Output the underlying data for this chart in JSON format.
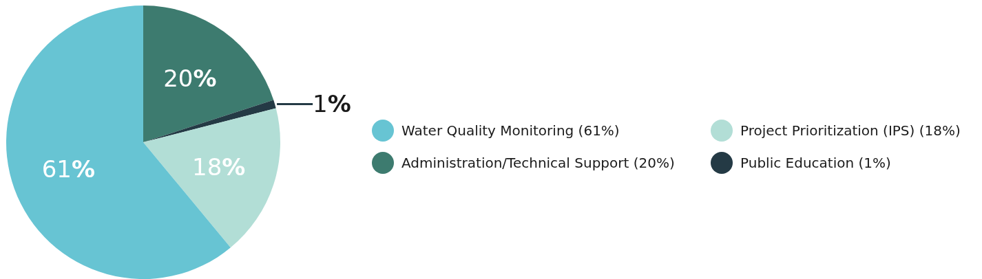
{
  "chart_data": {
    "type": "pie",
    "categories": [
      "Administration/Technical Support (20%)",
      "Public Education (1%)",
      "Project Prioritization (IPS) (18%)",
      "Water Quality Monitoring (61%)"
    ],
    "values": [
      20,
      1,
      18,
      61
    ],
    "colors": [
      "#3d7b6f",
      "#243a45",
      "#b2ded6",
      "#67c4d3"
    ],
    "value_labels": [
      "20%",
      "1%",
      "18%",
      "61%"
    ],
    "legend": "right"
  }
}
